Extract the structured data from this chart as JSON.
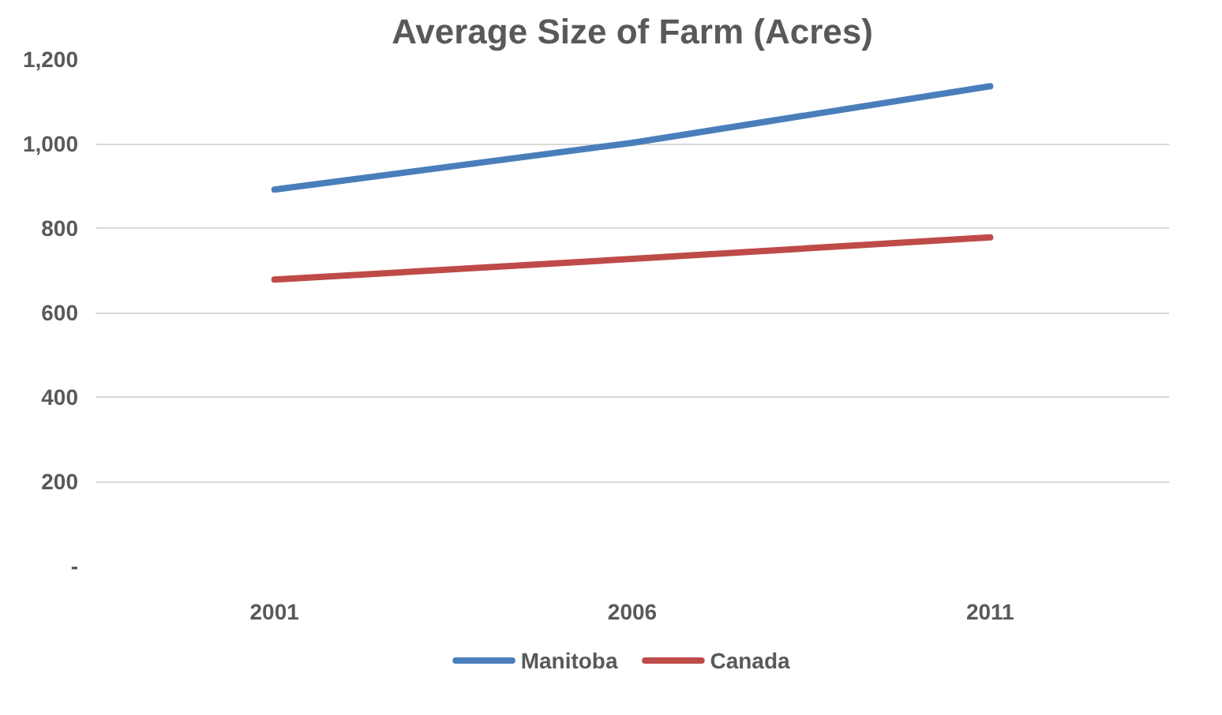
{
  "chart_data": {
    "type": "line",
    "title": "Average Size of Farm (Acres)",
    "categories": [
      "2001",
      "2006",
      "2011"
    ],
    "series": [
      {
        "name": "Manitoba",
        "color": "#4a7ebb",
        "values": [
          891,
          1002,
          1136
        ]
      },
      {
        "name": "Canada",
        "color": "#be4b48",
        "values": [
          678,
          727,
          778
        ]
      }
    ],
    "ylim": [
      0,
      1200
    ],
    "yticks": [
      {
        "value": 0,
        "label": "-"
      },
      {
        "value": 200,
        "label": "200"
      },
      {
        "value": 400,
        "label": "400"
      },
      {
        "value": 600,
        "label": "600"
      },
      {
        "value": 800,
        "label": "800"
      },
      {
        "value": 1000,
        "label": "1,000"
      },
      {
        "value": 1200,
        "label": "1,200"
      }
    ],
    "grid": "y",
    "legend": "bottom",
    "line_style": "solid",
    "marker": "none"
  }
}
